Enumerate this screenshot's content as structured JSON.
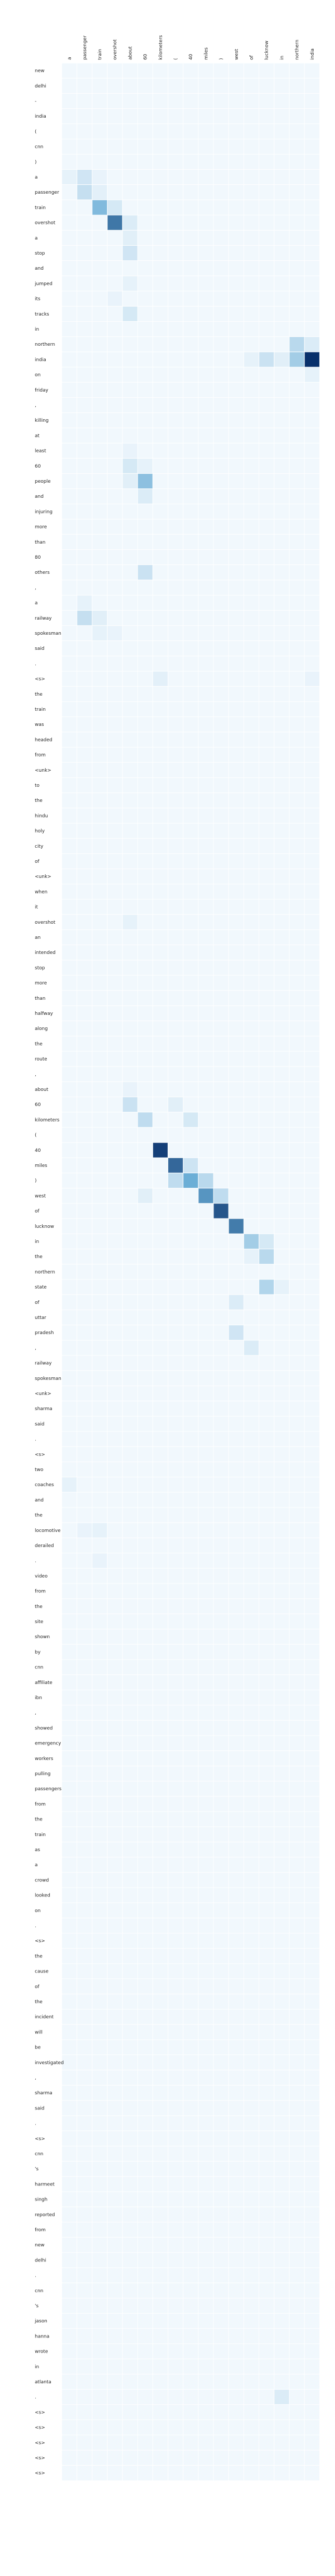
{
  "chart_data": {
    "type": "heatmap",
    "title": "",
    "xlabel": "",
    "ylabel": "",
    "x_labels": [
      "a",
      "passenger",
      "train",
      "overshot",
      "about",
      "60",
      "kilometers",
      "(",
      "40",
      "miles",
      ")",
      "west",
      "of",
      "lucknow",
      "in",
      "northern",
      "india"
    ],
    "y_labels": [
      "new",
      "delhi",
      "-",
      "india",
      "(",
      "cnn",
      ")",
      "a",
      "passenger",
      "train",
      "overshot",
      "a",
      "stop",
      "and",
      "jumped",
      "its",
      "tracks",
      "in",
      "northern",
      "india",
      "on",
      "friday",
      ",",
      "killing",
      "at",
      "least",
      "60",
      "people",
      "and",
      "injuring",
      "more",
      "than",
      "80",
      "others",
      ",",
      "a",
      "railway",
      "spokesman",
      "said",
      ".",
      "<s>",
      "the",
      "train",
      "was",
      "headed",
      "from",
      "<unk>",
      "to",
      "the",
      "hindu",
      "holy",
      "city",
      "of",
      "<unk>",
      "when",
      "it",
      "overshot",
      "an",
      "intended",
      "stop",
      "more",
      "than",
      "halfway",
      "along",
      "the",
      "route",
      ",",
      "about",
      "60",
      "kilometers",
      "(",
      "40",
      "miles",
      ")",
      "west",
      "of",
      "lucknow",
      "in",
      "the",
      "northern",
      "state",
      "of",
      "uttar",
      "pradesh",
      ",",
      "railway",
      "spokesman",
      "<unk>",
      "sharma",
      "said",
      ".",
      "<s>",
      "two",
      "coaches",
      "and",
      "the",
      "locomotive",
      "derailed",
      ".",
      "video",
      "from",
      "the",
      "site",
      "shown",
      "by",
      "cnn",
      "affiliate",
      "ibn",
      ",",
      "showed",
      "emergency",
      "workers",
      "pulling",
      "passengers",
      "from",
      "the",
      "train",
      "as",
      "a",
      "crowd",
      "looked",
      "on",
      ".",
      "<s>",
      "the",
      "cause",
      "of",
      "the",
      "incident",
      "will",
      "be",
      "investigated",
      ",",
      "sharma",
      "said",
      ".",
      "<s>",
      "cnn",
      "'s",
      "harmeet",
      "singh",
      "reported",
      "from",
      "new",
      "delhi",
      ".",
      "cnn",
      "'s",
      "jason",
      "hanna",
      "wrote",
      "in",
      "atlanta",
      ".",
      "<s>",
      "<s>",
      "<s>",
      "<s>",
      "<s>"
    ],
    "color_scale": {
      "low": "#f7fbff",
      "high": "#08306b",
      "min": 0,
      "max": 1
    },
    "base_value": 0.02,
    "cells": [
      [
        7,
        1,
        0.14
      ],
      [
        7,
        0,
        0.06
      ],
      [
        7,
        2,
        0.05
      ],
      [
        8,
        1,
        0.18
      ],
      [
        8,
        2,
        0.07
      ],
      [
        9,
        2,
        0.42
      ],
      [
        9,
        3,
        0.12
      ],
      [
        10,
        3,
        0.72
      ],
      [
        10,
        4,
        0.1
      ],
      [
        11,
        4,
        0.08
      ],
      [
        12,
        4,
        0.14
      ],
      [
        14,
        4,
        0.06
      ],
      [
        15,
        3,
        0.05
      ],
      [
        16,
        4,
        0.12
      ],
      [
        18,
        15,
        0.22
      ],
      [
        18,
        16,
        0.1
      ],
      [
        19,
        16,
        1.0
      ],
      [
        19,
        15,
        0.3
      ],
      [
        19,
        13,
        0.16
      ],
      [
        19,
        14,
        0.08
      ],
      [
        19,
        12,
        0.06
      ],
      [
        20,
        16,
        0.06
      ],
      [
        25,
        4,
        0.05
      ],
      [
        26,
        4,
        0.12
      ],
      [
        26,
        5,
        0.06
      ],
      [
        27,
        5,
        0.38
      ],
      [
        27,
        4,
        0.08
      ],
      [
        28,
        5,
        0.1
      ],
      [
        33,
        5,
        0.16
      ],
      [
        35,
        1,
        0.06
      ],
      [
        36,
        1,
        0.18
      ],
      [
        36,
        2,
        0.08
      ],
      [
        37,
        2,
        0.06
      ],
      [
        37,
        3,
        0.05
      ],
      [
        40,
        6,
        0.07
      ],
      [
        40,
        16,
        0.05
      ],
      [
        56,
        4,
        0.06
      ],
      [
        67,
        4,
        0.05
      ],
      [
        68,
        4,
        0.16
      ],
      [
        68,
        7,
        0.08
      ],
      [
        69,
        5,
        0.2
      ],
      [
        69,
        8,
        0.12
      ],
      [
        71,
        6,
        0.94
      ],
      [
        72,
        7,
        0.78
      ],
      [
        72,
        8,
        0.15
      ],
      [
        73,
        8,
        0.5
      ],
      [
        73,
        9,
        0.22
      ],
      [
        73,
        7,
        0.2
      ],
      [
        74,
        9,
        0.6
      ],
      [
        74,
        10,
        0.2
      ],
      [
        74,
        5,
        0.08
      ],
      [
        75,
        10,
        0.85
      ],
      [
        76,
        11,
        0.7
      ],
      [
        77,
        12,
        0.3
      ],
      [
        77,
        13,
        0.12
      ],
      [
        78,
        13,
        0.22
      ],
      [
        78,
        12,
        0.06
      ],
      [
        80,
        13,
        0.25
      ],
      [
        80,
        14,
        0.06
      ],
      [
        81,
        11,
        0.1
      ],
      [
        83,
        11,
        0.14
      ],
      [
        84,
        12,
        0.1
      ],
      [
        93,
        0,
        0.06
      ],
      [
        96,
        2,
        0.06
      ],
      [
        96,
        1,
        0.05
      ],
      [
        98,
        2,
        0.05
      ],
      [
        153,
        14,
        0.1
      ],
      [
        170,
        6,
        0.07
      ],
      [
        170,
        16,
        0.06
      ],
      [
        171,
        6,
        0.08
      ],
      [
        172,
        6,
        0.08
      ],
      [
        173,
        6,
        0.07
      ],
      [
        174,
        6,
        0.06
      ],
      [
        174,
        16,
        0.06
      ]
    ]
  }
}
